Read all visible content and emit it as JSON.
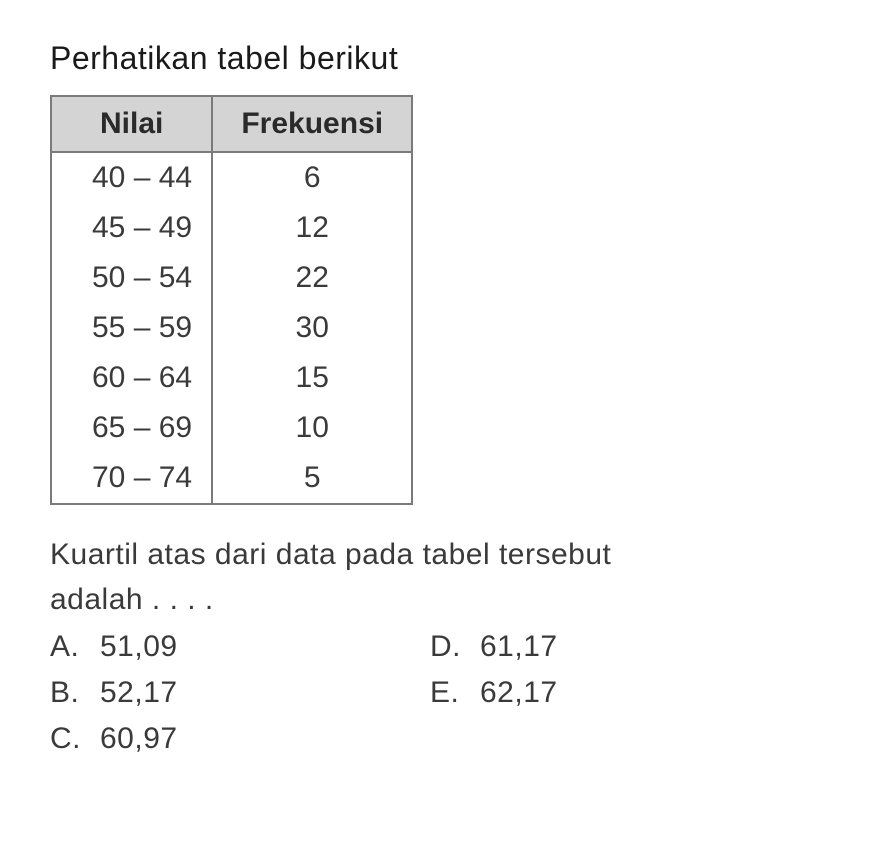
{
  "title": "Perhatikan tabel berikut",
  "title_fontsize": 32,
  "text_fontsize": 30,
  "text_color": "#3a3a3a",
  "title_color": "#1a1a1a",
  "background_color": "#ffffff",
  "table": {
    "header_bg": "#d4d4d4",
    "border_color": "#7a7a7a",
    "columns": [
      "Nilai",
      "Frekuensi"
    ],
    "rows": [
      [
        "40 – 44",
        "6"
      ],
      [
        "45 – 49",
        "12"
      ],
      [
        "50 – 54",
        "22"
      ],
      [
        "55 – 59",
        "30"
      ],
      [
        "60 – 64",
        "15"
      ],
      [
        "65 – 69",
        "10"
      ],
      [
        "70 – 74",
        "5"
      ]
    ]
  },
  "question_line1": "Kuartil atas dari data pada tabel tersebut",
  "question_line2": "adalah . . . .",
  "options": {
    "A": "51,09",
    "B": "52,17",
    "C": "60,97",
    "D": "61,17",
    "E": "62,17"
  }
}
